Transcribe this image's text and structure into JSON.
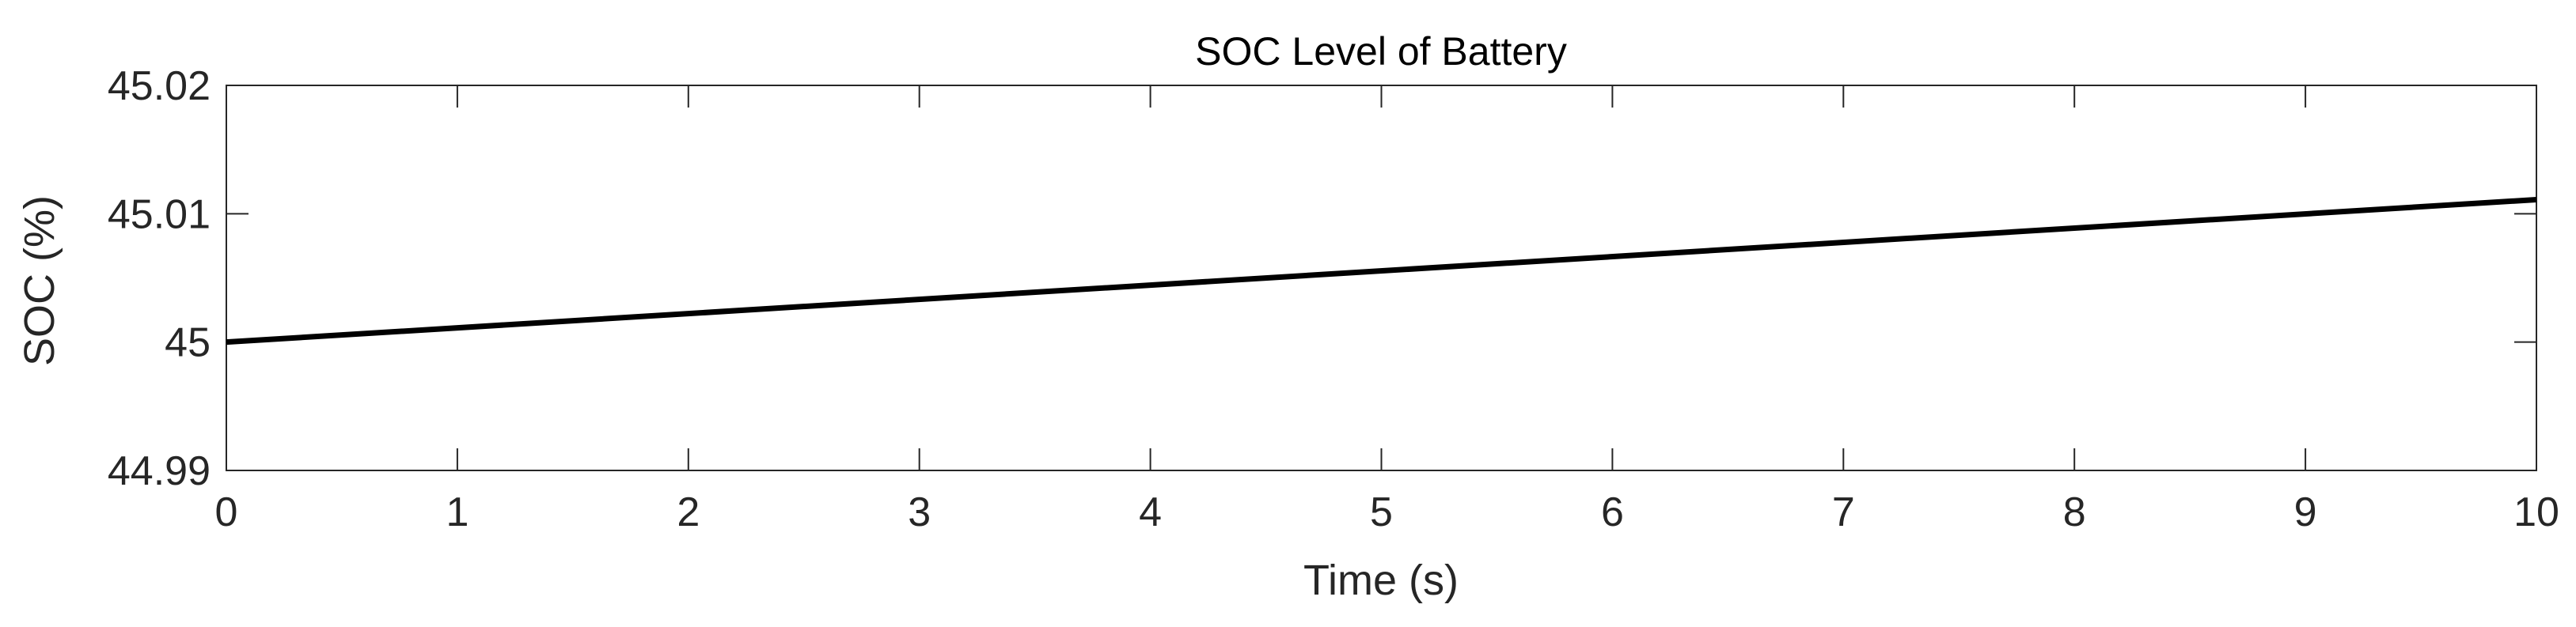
{
  "chart_data": {
    "type": "line",
    "title": "SOC Level of Battery",
    "xlabel": "Time (s)",
    "ylabel": "SOC (%)",
    "xlim": [
      0,
      10
    ],
    "ylim": [
      44.99,
      45.02
    ],
    "x_ticks": [
      "0",
      "1",
      "2",
      "3",
      "4",
      "5",
      "6",
      "7",
      "8",
      "9",
      "10"
    ],
    "y_ticks": [
      "44.99",
      "45",
      "45.01",
      "45.02"
    ],
    "grid": false,
    "series": [
      {
        "name": "SOC",
        "color": "#000000",
        "x": [
          0,
          10
        ],
        "y": [
          45.0,
          45.0111
        ]
      }
    ]
  }
}
